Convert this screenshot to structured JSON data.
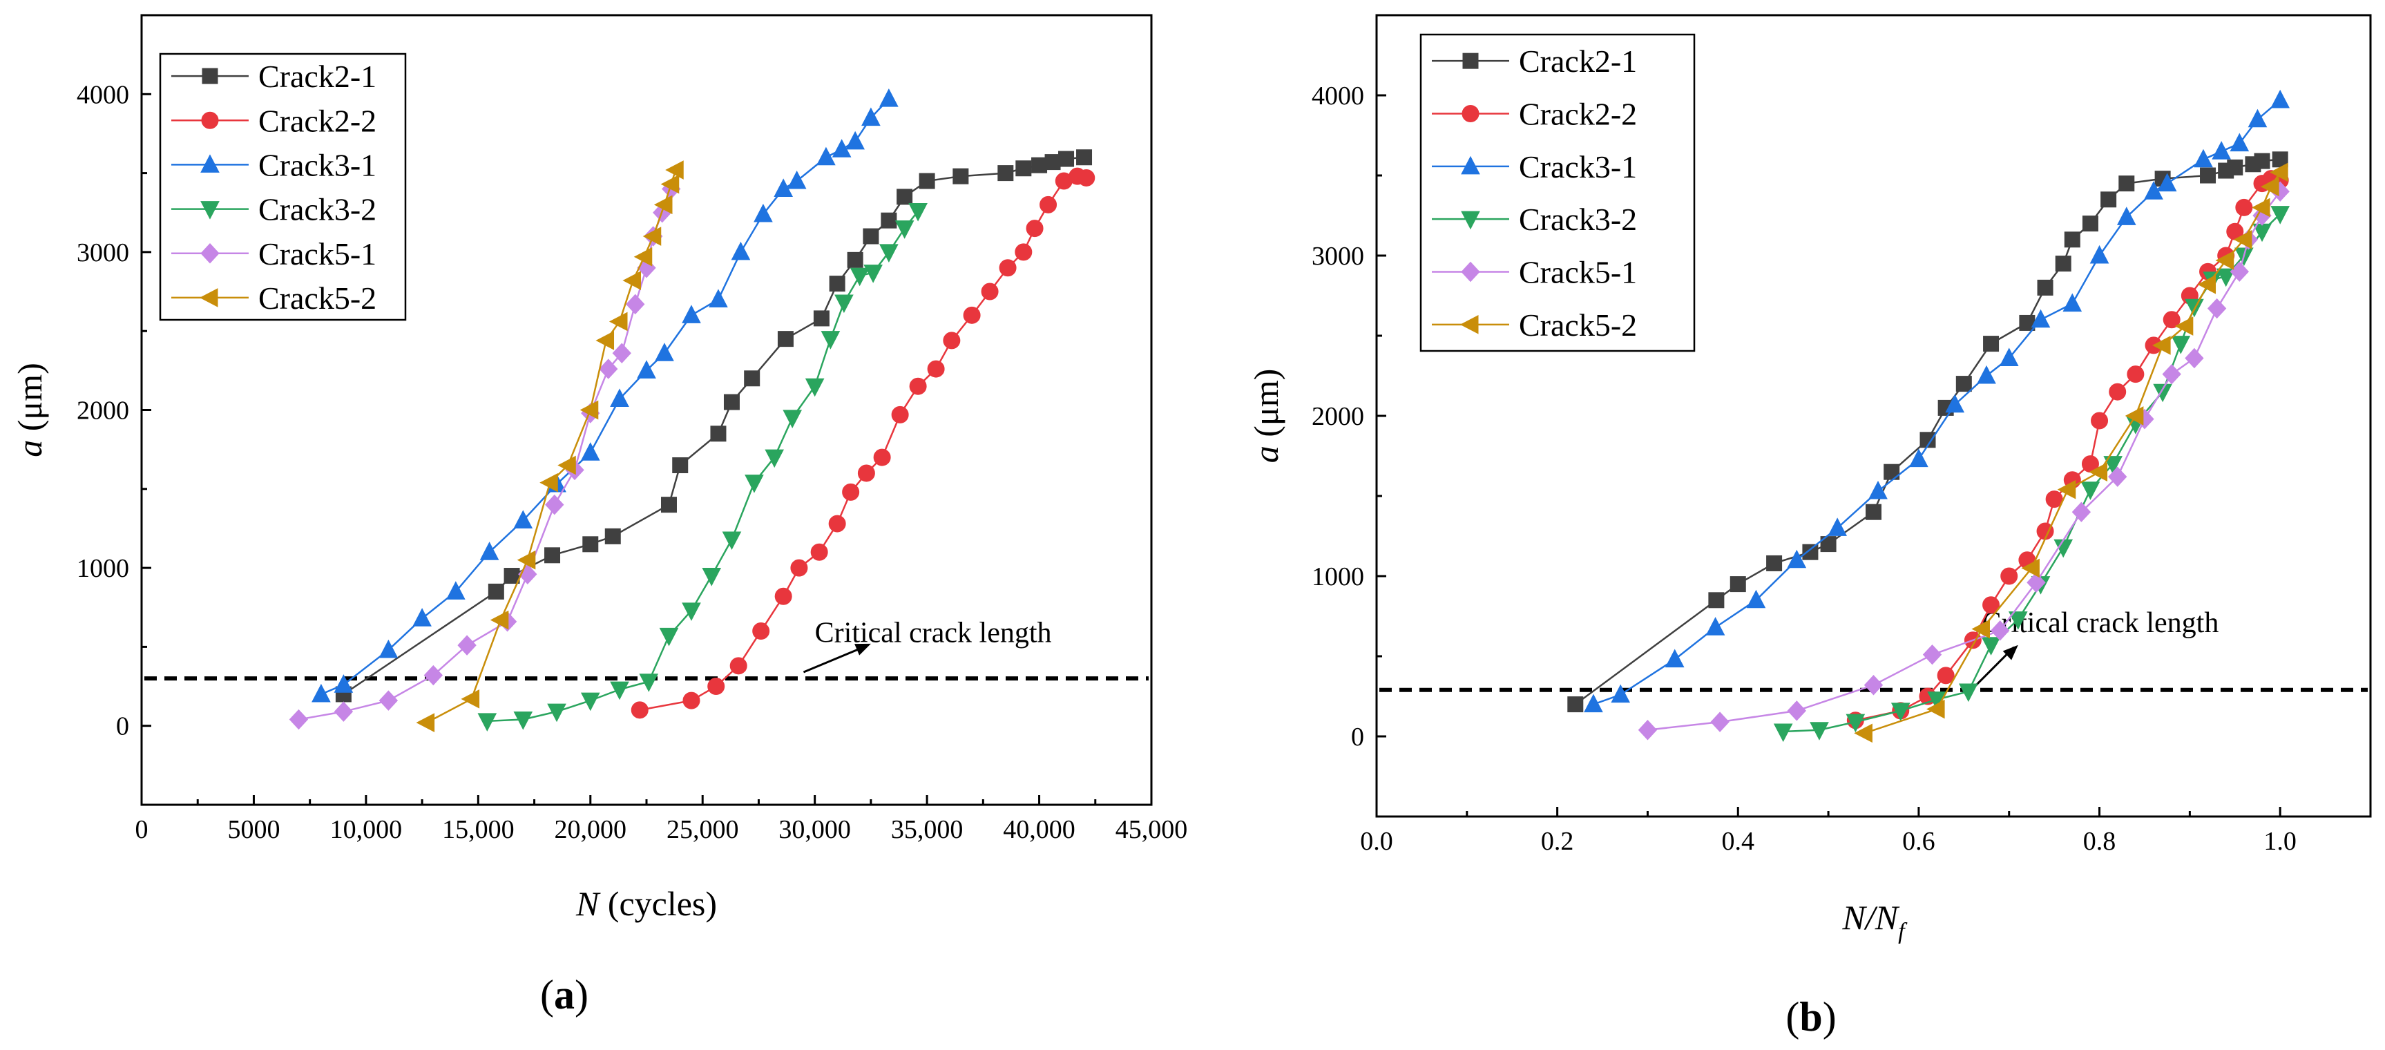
{
  "chart_data": [
    {
      "type": "line",
      "panel_label": "(a)",
      "xlabel": "N (cycles)",
      "xlabel_main": "N",
      "xlabel_unit": " (cycles)",
      "ylabel": "a (μm)",
      "ylabel_main": "a",
      "ylabel_unit": " (μm)",
      "xlim": [
        0,
        45000
      ],
      "ylim": [
        -500,
        4500
      ],
      "xticks": [
        0,
        5000,
        10000,
        15000,
        20000,
        25000,
        30000,
        35000,
        40000,
        45000
      ],
      "xtick_labels": [
        "0",
        "5000",
        "10,000",
        "15,000",
        "20,000",
        "25,000",
        "30,000",
        "35,000",
        "40,000",
        "45,000"
      ],
      "yticks": [
        0,
        1000,
        2000,
        3000,
        4000
      ],
      "ytick_labels": [
        "0",
        "1000",
        "2000",
        "3000",
        "4000"
      ],
      "threshold": 300,
      "annotation": {
        "text": "Critical crack length",
        "x": 30000,
        "y": 530,
        "arrow_from": [
          29500,
          340
        ],
        "arrow_to": [
          32500,
          520
        ]
      },
      "legend_position": "top-left",
      "series": [
        {
          "name": "Crack2-1",
          "color": "#404040",
          "marker": "square",
          "x": [
            9000,
            15800,
            16500,
            18300,
            20000,
            21000,
            23500,
            24000,
            25700,
            26300,
            27200,
            28700,
            30300,
            31000,
            31800,
            32500,
            33300,
            34000,
            35000,
            36500,
            38500,
            39300,
            40000,
            40600,
            41200,
            42000
          ],
          "y": [
            200,
            850,
            950,
            1080,
            1150,
            1200,
            1400,
            1650,
            1850,
            2050,
            2200,
            2450,
            2580,
            2800,
            2950,
            3100,
            3200,
            3350,
            3450,
            3480,
            3500,
            3530,
            3550,
            3570,
            3590,
            3600
          ]
        },
        {
          "name": "Crack2-2",
          "color": "#e8363d",
          "marker": "circle",
          "x": [
            22200,
            24500,
            25600,
            26600,
            27600,
            28600,
            29300,
            30200,
            31000,
            31600,
            32300,
            33000,
            33800,
            34600,
            35400,
            36100,
            37000,
            37800,
            38600,
            39300,
            39800,
            40400,
            41100,
            41700,
            42100
          ],
          "y": [
            100,
            160,
            250,
            380,
            600,
            820,
            1000,
            1100,
            1280,
            1480,
            1600,
            1700,
            1970,
            2150,
            2260,
            2440,
            2600,
            2750,
            2900,
            3000,
            3150,
            3300,
            3450,
            3480,
            3470
          ]
        },
        {
          "name": "Crack3-1",
          "color": "#1f73e0",
          "marker": "triangle-up",
          "x": [
            8000,
            9000,
            11000,
            12500,
            14000,
            15500,
            17000,
            18500,
            20000,
            21300,
            22500,
            23300,
            24500,
            25700,
            26700,
            27700,
            28600,
            29200,
            30500,
            31200,
            31800,
            32500,
            33300
          ],
          "y": [
            200,
            260,
            480,
            680,
            850,
            1100,
            1300,
            1530,
            1730,
            2070,
            2250,
            2360,
            2600,
            2700,
            3000,
            3240,
            3400,
            3450,
            3600,
            3650,
            3700,
            3850,
            3970
          ]
        },
        {
          "name": "Crack3-2",
          "color": "#2aa55e",
          "marker": "triangle-down",
          "x": [
            15400,
            17000,
            18500,
            20000,
            21300,
            22600,
            23500,
            24500,
            25400,
            26300,
            27300,
            28200,
            29000,
            30000,
            30700,
            31300,
            32000,
            32600,
            33300,
            34000,
            34600
          ],
          "y": [
            30,
            40,
            90,
            160,
            230,
            280,
            570,
            730,
            950,
            1180,
            1540,
            1700,
            1950,
            2150,
            2450,
            2680,
            2850,
            2870,
            3000,
            3150,
            3260
          ]
        },
        {
          "name": "Crack5-1",
          "color": "#c686e6",
          "marker": "diamond",
          "x": [
            7000,
            9000,
            11000,
            13000,
            14500,
            16300,
            17200,
            18400,
            19300,
            20000,
            20800,
            21400,
            22000,
            22500,
            22800,
            23200,
            23600
          ],
          "y": [
            40,
            90,
            160,
            320,
            510,
            660,
            960,
            1400,
            1620,
            1980,
            2260,
            2360,
            2670,
            2900,
            3100,
            3250,
            3400
          ]
        },
        {
          "name": "Crack5-2",
          "color": "#c98e0a",
          "marker": "triangle-left",
          "x": [
            12700,
            14700,
            16000,
            17200,
            18200,
            19000,
            20000,
            20700,
            21300,
            21900,
            22400,
            22800,
            23300,
            23600,
            23800
          ],
          "y": [
            20,
            170,
            670,
            1050,
            1540,
            1650,
            2000,
            2440,
            2560,
            2820,
            2970,
            3100,
            3300,
            3430,
            3520
          ]
        }
      ]
    },
    {
      "type": "line",
      "panel_label": "(b)",
      "xlabel": "N/Nf",
      "xlabel_main": "N/N",
      "xlabel_sub": "f",
      "ylabel": "a (μm)",
      "ylabel_main": "a",
      "ylabel_unit": " (μm)",
      "xlim": [
        0.0,
        1.1
      ],
      "ylim": [
        -500,
        4500
      ],
      "xticks": [
        0.0,
        0.2,
        0.4,
        0.6,
        0.8,
        1.0
      ],
      "xtick_labels": [
        "0.0",
        "0.2",
        "0.4",
        "0.6",
        "0.8",
        "1.0"
      ],
      "yticks": [
        0,
        1000,
        2000,
        3000,
        4000
      ],
      "ytick_labels": [
        "0",
        "1000",
        "2000",
        "3000",
        "4000"
      ],
      "threshold": 290,
      "annotation": {
        "text": "Critical crack length",
        "x": 0.67,
        "y": 650,
        "arrow_from": [
          0.66,
          300
        ],
        "arrow_to": [
          0.71,
          570
        ]
      },
      "legend_position": "top-left",
      "series": [
        {
          "name": "Crack2-1",
          "color": "#404040",
          "marker": "square",
          "x": [
            0.22,
            0.376,
            0.4,
            0.44,
            0.48,
            0.5,
            0.55,
            0.57,
            0.61,
            0.63,
            0.65,
            0.68,
            0.72,
            0.74,
            0.76,
            0.77,
            0.79,
            0.81,
            0.83,
            0.87,
            0.92,
            0.94,
            0.95,
            0.97,
            0.98,
            1.0
          ],
          "y": [
            200,
            850,
            950,
            1080,
            1150,
            1200,
            1400,
            1650,
            1850,
            2050,
            2200,
            2450,
            2580,
            2800,
            2950,
            3100,
            3200,
            3350,
            3450,
            3480,
            3500,
            3530,
            3550,
            3570,
            3590,
            3600
          ]
        },
        {
          "name": "Crack2-2",
          "color": "#e8363d",
          "marker": "circle",
          "x": [
            0.53,
            0.58,
            0.61,
            0.63,
            0.66,
            0.68,
            0.7,
            0.72,
            0.74,
            0.75,
            0.77,
            0.79,
            0.8,
            0.82,
            0.84,
            0.86,
            0.88,
            0.9,
            0.92,
            0.94,
            0.95,
            0.96,
            0.98,
            0.99,
            1.0
          ],
          "y": [
            100,
            160,
            250,
            380,
            600,
            820,
            1000,
            1100,
            1280,
            1480,
            1600,
            1700,
            1970,
            2150,
            2260,
            2440,
            2600,
            2750,
            2900,
            3000,
            3150,
            3300,
            3450,
            3480,
            3470
          ]
        },
        {
          "name": "Crack3-1",
          "color": "#1f73e0",
          "marker": "triangle-up",
          "x": [
            0.24,
            0.27,
            0.33,
            0.375,
            0.42,
            0.465,
            0.51,
            0.555,
            0.6,
            0.64,
            0.675,
            0.7,
            0.735,
            0.77,
            0.8,
            0.83,
            0.86,
            0.875,
            0.915,
            0.935,
            0.955,
            0.975,
            1.0
          ],
          "y": [
            200,
            260,
            480,
            680,
            850,
            1100,
            1300,
            1530,
            1730,
            2070,
            2250,
            2360,
            2600,
            2700,
            3000,
            3240,
            3400,
            3450,
            3600,
            3650,
            3700,
            3850,
            3970
          ]
        },
        {
          "name": "Crack3-2",
          "color": "#2aa55e",
          "marker": "triangle-down",
          "x": [
            0.45,
            0.49,
            0.53,
            0.58,
            0.62,
            0.655,
            0.68,
            0.71,
            0.735,
            0.76,
            0.79,
            0.815,
            0.84,
            0.87,
            0.89,
            0.905,
            0.925,
            0.94,
            0.96,
            0.98,
            1.0
          ],
          "y": [
            30,
            40,
            90,
            160,
            230,
            280,
            570,
            730,
            950,
            1180,
            1540,
            1700,
            1950,
            2150,
            2450,
            2680,
            2850,
            2870,
            3000,
            3150,
            3260
          ]
        },
        {
          "name": "Crack5-1",
          "color": "#c686e6",
          "marker": "diamond",
          "x": [
            0.3,
            0.38,
            0.465,
            0.55,
            0.615,
            0.69,
            0.73,
            0.78,
            0.82,
            0.85,
            0.88,
            0.905,
            0.93,
            0.955,
            0.965,
            0.98,
            1.0
          ],
          "y": [
            40,
            90,
            160,
            320,
            510,
            660,
            960,
            1400,
            1620,
            1980,
            2260,
            2360,
            2670,
            2900,
            3100,
            3250,
            3400
          ]
        },
        {
          "name": "Crack5-2",
          "color": "#c98e0a",
          "marker": "triangle-left",
          "x": [
            0.54,
            0.62,
            0.67,
            0.725,
            0.765,
            0.8,
            0.84,
            0.87,
            0.895,
            0.92,
            0.94,
            0.96,
            0.98,
            0.99,
            1.0
          ],
          "y": [
            20,
            170,
            670,
            1050,
            1540,
            1650,
            2000,
            2440,
            2560,
            2820,
            2970,
            3100,
            3300,
            3430,
            3520
          ]
        }
      ]
    }
  ]
}
